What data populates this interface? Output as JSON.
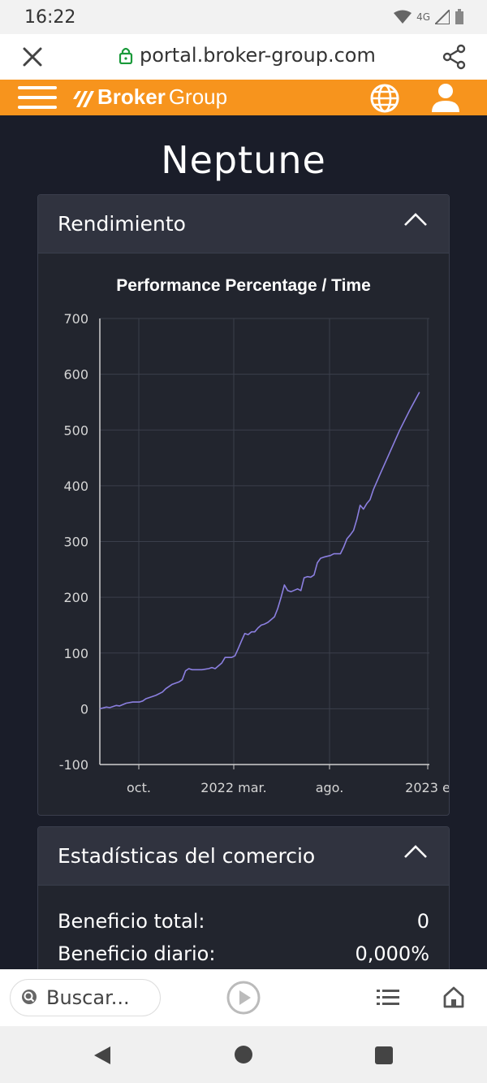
{
  "status_bar": {
    "time": "16:22",
    "network": "4G"
  },
  "browser": {
    "url": "portal.broker-group.com"
  },
  "header": {
    "brand_bold": "Broker",
    "brand_light": "Group"
  },
  "page": {
    "title": "Neptune"
  },
  "performance_card": {
    "title": "Rendimiento"
  },
  "chart_data": {
    "type": "line",
    "title": "Performance Percentage / Time",
    "ylim": [
      -100,
      700
    ],
    "yticks": [
      -100,
      0,
      100,
      200,
      300,
      400,
      500,
      600,
      700
    ],
    "xticks": [
      "oct.",
      "2022 mar.",
      "ago.",
      "2023 e"
    ],
    "grid": true,
    "line_color": "#8b7fe0",
    "series": [
      {
        "points": [
          [
            0,
            0
          ],
          [
            0.02,
            3
          ],
          [
            0.03,
            2
          ],
          [
            0.05,
            6
          ],
          [
            0.06,
            5
          ],
          [
            0.08,
            10
          ],
          [
            0.1,
            12
          ],
          [
            0.12,
            12
          ],
          [
            0.13,
            14
          ],
          [
            0.14,
            18
          ],
          [
            0.15,
            20
          ],
          [
            0.17,
            24
          ],
          [
            0.19,
            30
          ],
          [
            0.2,
            36
          ],
          [
            0.22,
            44
          ],
          [
            0.24,
            48
          ],
          [
            0.25,
            52
          ],
          [
            0.26,
            68
          ],
          [
            0.27,
            72
          ],
          [
            0.28,
            70
          ],
          [
            0.31,
            70
          ],
          [
            0.33,
            72
          ],
          [
            0.34,
            74
          ],
          [
            0.35,
            72
          ],
          [
            0.37,
            82
          ],
          [
            0.38,
            92
          ],
          [
            0.4,
            92
          ],
          [
            0.41,
            95
          ],
          [
            0.42,
            108
          ],
          [
            0.43,
            122
          ],
          [
            0.44,
            135
          ],
          [
            0.45,
            133
          ],
          [
            0.46,
            138
          ],
          [
            0.47,
            138
          ],
          [
            0.48,
            145
          ],
          [
            0.49,
            150
          ],
          [
            0.5,
            152
          ],
          [
            0.51,
            155
          ],
          [
            0.52,
            160
          ],
          [
            0.53,
            165
          ],
          [
            0.54,
            180
          ],
          [
            0.55,
            200
          ],
          [
            0.56,
            222
          ],
          [
            0.57,
            212
          ],
          [
            0.58,
            210
          ],
          [
            0.6,
            215
          ],
          [
            0.61,
            212
          ],
          [
            0.62,
            235
          ],
          [
            0.63,
            237
          ],
          [
            0.64,
            236
          ],
          [
            0.65,
            240
          ],
          [
            0.66,
            262
          ],
          [
            0.67,
            270
          ],
          [
            0.68,
            272
          ],
          [
            0.7,
            275
          ],
          [
            0.71,
            278
          ],
          [
            0.73,
            278
          ],
          [
            0.74,
            290
          ],
          [
            0.75,
            305
          ],
          [
            0.76,
            312
          ],
          [
            0.77,
            320
          ],
          [
            0.78,
            340
          ],
          [
            0.79,
            365
          ],
          [
            0.8,
            358
          ],
          [
            0.81,
            368
          ],
          [
            0.82,
            375
          ],
          [
            0.83,
            393
          ],
          [
            0.85,
            420
          ],
          [
            0.88,
            460
          ],
          [
            0.91,
            500
          ],
          [
            0.94,
            535
          ],
          [
            0.97,
            568
          ]
        ]
      }
    ]
  },
  "stats_card": {
    "title": "Estadísticas del comercio",
    "rows": [
      {
        "label": "Beneficio total:",
        "value": "0"
      },
      {
        "label": "Beneficio diario:",
        "value": "0,000%"
      }
    ]
  },
  "bottom_bar": {
    "search_placeholder": "Buscar..."
  }
}
